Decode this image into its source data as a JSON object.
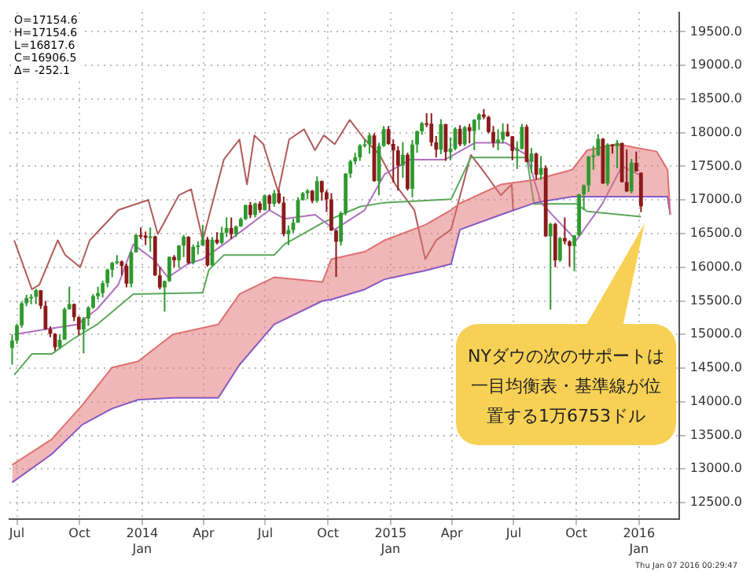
{
  "chart_data": {
    "type": "candlestick",
    "xlim": [
      "2013-06-20",
      "2016-02-29"
    ],
    "xticks": [
      {
        "value": "2013-07",
        "label": "Jul"
      },
      {
        "value": "2013-10",
        "label": "Oct"
      },
      {
        "value": "2014-01",
        "label": "2014\nJan"
      },
      {
        "value": "2014-04",
        "label": "Apr"
      },
      {
        "value": "2014-07",
        "label": "Jul"
      },
      {
        "value": "2014-10",
        "label": "Oct"
      },
      {
        "value": "2015-01",
        "label": "2015\nJan"
      },
      {
        "value": "2015-04",
        "label": "Apr"
      },
      {
        "value": "2015-07",
        "label": "Jul"
      },
      {
        "value": "2015-10",
        "label": "Oct"
      },
      {
        "value": "2016-01",
        "label": "2016\nJan"
      }
    ],
    "ylim": [
      12260,
      19790
    ],
    "yticks": [
      {
        "value": 12500,
        "label": "12500.0"
      },
      {
        "value": 13000,
        "label": "13000.0"
      },
      {
        "value": 13500,
        "label": "13500.0"
      },
      {
        "value": 14000,
        "label": "14000.0"
      },
      {
        "value": 14500,
        "label": "14500.0"
      },
      {
        "value": 15000,
        "label": "15000.0"
      },
      {
        "value": 15500,
        "label": "15500.0"
      },
      {
        "value": 16000,
        "label": "16000.0"
      },
      {
        "value": 16500,
        "label": "16500.0"
      },
      {
        "value": 17000,
        "label": "17000.0"
      },
      {
        "value": 17500,
        "label": "17500.0"
      },
      {
        "value": 18000,
        "label": "18000.0"
      },
      {
        "value": 18500,
        "label": "18500.0"
      },
      {
        "value": 19000,
        "label": "19000.0"
      },
      {
        "value": 19500,
        "label": "19500.0"
      }
    ],
    "grid": true,
    "line_style": "solid",
    "annotations": [
      "O=17154.6\nH=17154.6\nL=16817.6\nC=16906.5\nΔ= -252.1",
      "Thu Jan 07 2016 00:29:47",
      "NYダウの次のサポートは一目均衡表・基準線が位置する1万6753ドル"
    ],
    "series": [
      {
        "color": "#2e9a2e",
        "x": [
          "2013-06-24",
          "2013-07-01",
          "2013-07-08",
          "2013-07-15",
          "2013-07-22",
          "2013-07-29",
          "2013-09-02",
          "2013-09-09",
          "2013-09-16",
          "2013-10-07",
          "2013-10-14",
          "2013-10-21",
          "2013-10-28",
          "2013-11-04",
          "2013-11-11",
          "2013-11-18",
          "2013-11-25",
          "2013-12-16",
          "2013-12-23",
          "2014-01-13",
          "2014-02-03",
          "2014-02-10",
          "2014-02-24",
          "2014-03-03",
          "2014-03-17",
          "2014-03-24",
          "2014-03-31",
          "2014-04-14",
          "2014-04-28",
          "2014-05-05",
          "2014-05-19",
          "2014-05-26",
          "2014-06-02",
          "2014-06-16",
          "2014-06-30",
          "2014-07-14",
          "2014-08-04",
          "2014-08-11",
          "2014-08-18",
          "2014-08-25",
          "2014-09-01",
          "2014-09-15",
          "2014-10-20",
          "2014-10-27",
          "2014-11-03",
          "2014-11-10",
          "2014-11-17",
          "2014-11-24",
          "2014-12-01",
          "2014-12-15",
          "2014-12-22",
          "2015-01-19",
          "2015-02-02",
          "2015-02-09",
          "2015-02-16",
          "2015-03-16",
          "2015-03-30",
          "2015-04-06",
          "2015-04-20",
          "2015-05-04",
          "2015-05-11",
          "2015-06-08",
          "2015-06-15",
          "2015-07-06",
          "2015-07-13",
          "2015-07-27",
          "2015-08-10",
          "2015-08-24",
          "2015-09-07",
          "2015-09-28",
          "2015-10-05",
          "2015-10-12",
          "2015-10-19",
          "2015-10-26",
          "2015-11-02",
          "2015-11-16",
          "2015-11-30",
          "2015-12-21"
        ],
        "ohlc": [
          [
            14800,
            15000,
            14551,
            14910
          ],
          [
            14910,
            15160,
            14860,
            15135
          ],
          [
            15135,
            15490,
            15100,
            15464
          ],
          [
            15464,
            15590,
            15420,
            15543
          ],
          [
            15543,
            15600,
            15450,
            15559
          ],
          [
            15559,
            15680,
            15450,
            15658
          ],
          [
            14810,
            15000,
            14780,
            14922
          ],
          [
            14922,
            15400,
            14920,
            15376
          ],
          [
            15376,
            15710,
            15370,
            15452
          ],
          [
            15073,
            15260,
            14720,
            15237
          ],
          [
            15237,
            15420,
            15130,
            15400
          ],
          [
            15400,
            15600,
            15380,
            15570
          ],
          [
            15570,
            15710,
            15520,
            15615
          ],
          [
            15615,
            15800,
            15550,
            15762
          ],
          [
            15762,
            15980,
            15700,
            15962
          ],
          [
            15962,
            16080,
            15850,
            16065
          ],
          [
            16065,
            16180,
            16040,
            16086
          ],
          [
            15755,
            16240,
            15700,
            16221
          ],
          [
            16221,
            16490,
            16220,
            16479
          ],
          [
            16437,
            16590,
            16230,
            16458
          ],
          [
            15699,
            15800,
            15340,
            15794
          ],
          [
            15794,
            16160,
            15780,
            16154
          ],
          [
            16103,
            16330,
            15990,
            16321
          ],
          [
            16321,
            16480,
            16150,
            16452
          ],
          [
            16065,
            16340,
            16040,
            16302
          ],
          [
            16302,
            16380,
            16190,
            16323
          ],
          [
            16323,
            16630,
            16320,
            16412
          ],
          [
            16027,
            16450,
            16020,
            16409
          ],
          [
            16361,
            16600,
            16340,
            16512
          ],
          [
            16512,
            16740,
            16450,
            16583
          ],
          [
            16491,
            16620,
            16450,
            16606
          ],
          [
            16606,
            16740,
            16600,
            16717
          ],
          [
            16717,
            16930,
            16700,
            16924
          ],
          [
            16776,
            16960,
            16740,
            16947
          ],
          [
            16851,
            17080,
            16840,
            17068
          ],
          [
            16944,
            17150,
            16900,
            17100
          ],
          [
            16493,
            16620,
            16330,
            16553
          ],
          [
            16553,
            16720,
            16510,
            16662
          ],
          [
            16662,
            17040,
            16660,
            17001
          ],
          [
            17001,
            17120,
            16990,
            17098
          ],
          [
            17098,
            17160,
            17010,
            17137
          ],
          [
            16987,
            17350,
            16960,
            17280
          ],
          [
            16380,
            16830,
            16320,
            16805
          ],
          [
            16805,
            17400,
            16770,
            17391
          ],
          [
            17391,
            17600,
            17330,
            17573
          ],
          [
            17573,
            17700,
            17530,
            17634
          ],
          [
            17634,
            17830,
            17580,
            17810
          ],
          [
            17810,
            17900,
            17780,
            17828
          ],
          [
            17828,
            17990,
            17690,
            17958
          ],
          [
            17281,
            17850,
            17070,
            17804
          ],
          [
            17804,
            18100,
            17790,
            18053
          ],
          [
            17512,
            17860,
            17330,
            17672
          ],
          [
            17165,
            17890,
            17040,
            17824
          ],
          [
            17824,
            18030,
            17700,
            18019
          ],
          [
            18019,
            18160,
            17970,
            18140
          ],
          [
            17749,
            18200,
            17680,
            18128
          ],
          [
            17712,
            17930,
            17590,
            17763
          ],
          [
            17763,
            18080,
            17740,
            18057
          ],
          [
            17826,
            18100,
            17800,
            18080
          ],
          [
            18024,
            18200,
            17740,
            18191
          ],
          [
            18191,
            18290,
            18040,
            18272
          ],
          [
            17849,
            18050,
            17740,
            17898
          ],
          [
            17898,
            18140,
            17840,
            18015
          ],
          [
            17730,
            17870,
            17460,
            17760
          ],
          [
            17760,
            18130,
            17750,
            18086
          ],
          [
            17568,
            17770,
            17400,
            17690
          ],
          [
            17373,
            17650,
            17300,
            17477
          ],
          [
            16460,
            16660,
            15370,
            16643
          ],
          [
            16102,
            16450,
            16080,
            16433
          ],
          [
            16315,
            16480,
            15940,
            16472
          ],
          [
            16472,
            17090,
            16460,
            17084
          ],
          [
            17084,
            17230,
            16850,
            17216
          ],
          [
            17216,
            17650,
            17120,
            17646
          ],
          [
            17646,
            17800,
            17450,
            17664
          ],
          [
            17664,
            17980,
            17650,
            17910
          ],
          [
            17245,
            17840,
            17210,
            17824
          ],
          [
            17798,
            17890,
            17470,
            17848
          ],
          [
            17128,
            17610,
            17100,
            17553
          ]
        ]
      },
      {
        "color": "#8b1a1a",
        "x": [
          "2013-08-05",
          "2013-08-12",
          "2013-08-19",
          "2013-08-26",
          "2013-09-23",
          "2013-09-30",
          "2013-12-02",
          "2013-12-09",
          "2013-12-30",
          "2014-01-06",
          "2014-01-20",
          "2014-01-27",
          "2014-02-17",
          "2014-03-10",
          "2014-04-07",
          "2014-04-21",
          "2014-05-12",
          "2014-06-09",
          "2014-06-23",
          "2014-07-07",
          "2014-07-21",
          "2014-07-28",
          "2014-09-08",
          "2014-09-22",
          "2014-09-29",
          "2014-10-06",
          "2014-10-13",
          "2014-12-08",
          "2014-12-29",
          "2015-01-05",
          "2015-01-12",
          "2015-01-26",
          "2015-02-23",
          "2015-03-02",
          "2015-03-09",
          "2015-03-23",
          "2015-04-13",
          "2015-04-27",
          "2015-05-18",
          "2015-05-25",
          "2015-06-01",
          "2015-06-22",
          "2015-06-29",
          "2015-07-20",
          "2015-08-03",
          "2015-08-17",
          "2015-08-31",
          "2015-09-14",
          "2015-09-21",
          "2015-11-09",
          "2015-11-23",
          "2015-12-07",
          "2015-12-14",
          "2015-12-28",
          "2016-01-04"
        ],
        "ohlc": [
          [
            15658,
            15660,
            15380,
            15426
          ],
          [
            15426,
            15500,
            15070,
            15081
          ],
          [
            15081,
            15120,
            14960,
            15010
          ],
          [
            15010,
            15020,
            14760,
            14810
          ],
          [
            15452,
            15460,
            15200,
            15258
          ],
          [
            15258,
            15270,
            14990,
            15073
          ],
          [
            16086,
            16100,
            15880,
            16020
          ],
          [
            16020,
            16050,
            15700,
            15755
          ],
          [
            16479,
            16590,
            16420,
            16470
          ],
          [
            16470,
            16530,
            16330,
            16437
          ],
          [
            16458,
            16470,
            15870,
            15879
          ],
          [
            15879,
            16000,
            15670,
            15699
          ],
          [
            16154,
            16180,
            16000,
            16103
          ],
          [
            16452,
            16460,
            16040,
            16065
          ],
          [
            16412,
            16450,
            16010,
            16027
          ],
          [
            16409,
            16520,
            16340,
            16361
          ],
          [
            16583,
            16740,
            16420,
            16491
          ],
          [
            16924,
            16970,
            16730,
            16776
          ],
          [
            16947,
            16980,
            16810,
            16851
          ],
          [
            17068,
            17080,
            16850,
            16944
          ],
          [
            17100,
            17150,
            16940,
            16960
          ],
          [
            16960,
            17050,
            16460,
            16493
          ],
          [
            17137,
            17150,
            16950,
            16987
          ],
          [
            17280,
            17290,
            16990,
            17113
          ],
          [
            17113,
            17150,
            16820,
            17009
          ],
          [
            17009,
            17100,
            16540,
            16544
          ],
          [
            16544,
            16560,
            15855,
            16380
          ],
          [
            17958,
            17990,
            17270,
            17281
          ],
          [
            18053,
            18100,
            17820,
            17833
          ],
          [
            17833,
            17900,
            17260,
            17737
          ],
          [
            17737,
            17800,
            17140,
            17512
          ],
          [
            17672,
            17700,
            17140,
            17165
          ],
          [
            18140,
            18290,
            18080,
            18133
          ],
          [
            18133,
            18290,
            17800,
            17856
          ],
          [
            17856,
            17950,
            17630,
            17749
          ],
          [
            18128,
            18130,
            17580,
            17712
          ],
          [
            18057,
            18110,
            17800,
            17826
          ],
          [
            18080,
            18130,
            17840,
            18024
          ],
          [
            18272,
            18350,
            18200,
            18232
          ],
          [
            18232,
            18250,
            17990,
            18011
          ],
          [
            18011,
            18100,
            17780,
            17849
          ],
          [
            18015,
            18130,
            17940,
            17947
          ],
          [
            17947,
            17950,
            17590,
            17730
          ],
          [
            18086,
            18120,
            17560,
            17568
          ],
          [
            17690,
            17700,
            17300,
            17373
          ],
          [
            17477,
            17510,
            16450,
            16460
          ],
          [
            16643,
            16660,
            16000,
            16102
          ],
          [
            16433,
            16740,
            16340,
            16385
          ],
          [
            16385,
            16400,
            16010,
            16315
          ],
          [
            17910,
            17920,
            17240,
            17245
          ],
          [
            17824,
            17830,
            17690,
            17798
          ],
          [
            17848,
            17850,
            17260,
            17265
          ],
          [
            17265,
            17750,
            17120,
            17128
          ],
          [
            17553,
            17720,
            17420,
            17425
          ],
          [
            17405,
            17405,
            16817,
            16906
          ]
        ]
      },
      {
        "type": "line",
        "color": "#e07070",
        "x": [
          "2013-06-24",
          "2013-08-21",
          "2013-10-05",
          "2013-11-18",
          "2013-12-26",
          "2014-02-15",
          "2014-04-23",
          "2014-05-24",
          "2014-07-14",
          "2014-09-23",
          "2014-10-06",
          "2014-11-24",
          "2014-12-23",
          "2015-02-21",
          "2015-03-31",
          "2015-04-13",
          "2015-06-12",
          "2015-08-02",
          "2015-09-25",
          "2015-10-17",
          "2015-11-30",
          "2016-01-27",
          "2016-02-12",
          "2016-02-16"
        ],
        "values": [
          13060,
          13440,
          13950,
          14510,
          14600,
          15000,
          15150,
          15600,
          15850,
          15780,
          16120,
          16230,
          16400,
          16630,
          16850,
          16950,
          17230,
          17300,
          17450,
          17740,
          17830,
          17720,
          17450,
          16780
        ],
        "upper": [
          13060,
          13440,
          13950,
          14510,
          14600,
          15000,
          15150,
          15600,
          15850,
          15780,
          16120,
          16230,
          16400,
          16630,
          16850,
          16950,
          17230,
          17300,
          17450,
          17740,
          17830,
          17720,
          17450,
          16780
        ],
        "lower": [
          12800,
          13220,
          13660,
          13900,
          14030,
          14060,
          14060,
          14550,
          15150,
          15500,
          15520,
          15670,
          15820,
          15950,
          16050,
          16560,
          16780,
          16960,
          17050,
          17050,
          17050,
          17050,
          17050,
          16780
        ]
      },
      {
        "type": "line",
        "color": "#6a4fe0",
        "x": [
          "2013-06-24",
          "2013-08-21",
          "2013-10-05",
          "2013-11-18",
          "2013-12-26",
          "2014-02-15",
          "2014-04-23",
          "2014-05-24",
          "2014-07-14",
          "2014-09-23",
          "2014-10-06",
          "2014-11-24",
          "2014-12-23",
          "2015-02-21",
          "2015-03-31",
          "2015-04-13",
          "2015-06-12",
          "2015-08-02",
          "2015-09-25",
          "2015-10-17",
          "2015-11-30",
          "2016-01-27",
          "2016-02-12",
          "2016-02-16"
        ],
        "values": [
          12800,
          13220,
          13660,
          13900,
          14030,
          14060,
          14060,
          14550,
          15150,
          15500,
          15520,
          15670,
          15820,
          15950,
          16050,
          16560,
          16780,
          16960,
          17050,
          17050,
          17050,
          17050,
          17050,
          16780
        ]
      },
      {
        "type": "line",
        "color": "#b070c0",
        "x": [
          "2013-06-27",
          "2013-08-08",
          "2013-09-28",
          "2013-10-27",
          "2013-11-27",
          "2013-12-19",
          "2014-01-17",
          "2014-02-08",
          "2014-03-09",
          "2014-03-31",
          "2014-05-01",
          "2014-05-30",
          "2014-07-07",
          "2014-07-29",
          "2014-09-12",
          "2014-10-11",
          "2014-11-24",
          "2014-12-23",
          "2015-01-30",
          "2015-03-22",
          "2015-05-05",
          "2015-06-19",
          "2015-07-20",
          "2015-08-10",
          "2015-09-01",
          "2015-10-01",
          "2015-11-08",
          "2015-12-07",
          "2016-01-04"
        ],
        "values": [
          15000,
          15070,
          15150,
          15380,
          15740,
          16340,
          16120,
          15850,
          16050,
          16120,
          16340,
          16560,
          16850,
          16720,
          16780,
          16560,
          16850,
          17380,
          17600,
          17600,
          17850,
          17850,
          17670,
          16960,
          16720,
          16400,
          16940,
          17500,
          17360
        ]
      },
      {
        "type": "line",
        "color": "#5aa85a",
        "x": [
          "2013-06-27",
          "2013-07-23",
          "2013-08-21",
          "2013-09-21",
          "2013-10-27",
          "2013-12-19",
          "2014-03-31",
          "2014-04-09",
          "2014-05-01",
          "2014-07-14",
          "2014-07-29",
          "2014-09-25",
          "2014-11-17",
          "2014-12-23",
          "2015-03-31",
          "2015-04-29",
          "2015-07-20",
          "2015-07-31",
          "2015-10-01",
          "2015-10-17",
          "2016-01-04"
        ],
        "values": [
          14400,
          14710,
          14710,
          14930,
          15150,
          15600,
          15620,
          15960,
          16180,
          16180,
          16340,
          16670,
          16900,
          16960,
          17010,
          17630,
          17630,
          16940,
          16940,
          16830,
          16750
        ]
      },
      {
        "type": "line",
        "color": "#b05a5a",
        "x": [
          "2013-06-27",
          "2013-07-23",
          "2013-08-03",
          "2013-08-30",
          "2013-09-10",
          "2013-10-02",
          "2013-10-16",
          "2013-11-27",
          "2014-01-10",
          "2014-01-24",
          "2014-02-24",
          "2014-03-14",
          "2014-03-31",
          "2014-05-01",
          "2014-05-24",
          "2014-06-04",
          "2014-06-15",
          "2014-06-28",
          "2014-07-20",
          "2014-08-05",
          "2014-08-27",
          "2014-09-12",
          "2014-09-25",
          "2014-10-11",
          "2014-11-02",
          "2014-11-24",
          "2014-12-16",
          "2015-01-08",
          "2015-02-05",
          "2015-02-21",
          "2015-03-09",
          "2015-03-31",
          "2015-04-29",
          "2015-05-21",
          "2015-06-12",
          "2015-06-28",
          "2015-06-30"
        ],
        "values": [
          16400,
          15670,
          15740,
          16400,
          16180,
          16000,
          16400,
          16850,
          17000,
          16490,
          17070,
          17160,
          16400,
          17600,
          17900,
          17230,
          17960,
          17830,
          17120,
          17900,
          18050,
          17740,
          17960,
          17830,
          18190,
          17900,
          17670,
          17230,
          16850,
          16120,
          16400,
          16560,
          17670,
          17380,
          17070,
          17230,
          16850
        ]
      }
    ]
  }
}
